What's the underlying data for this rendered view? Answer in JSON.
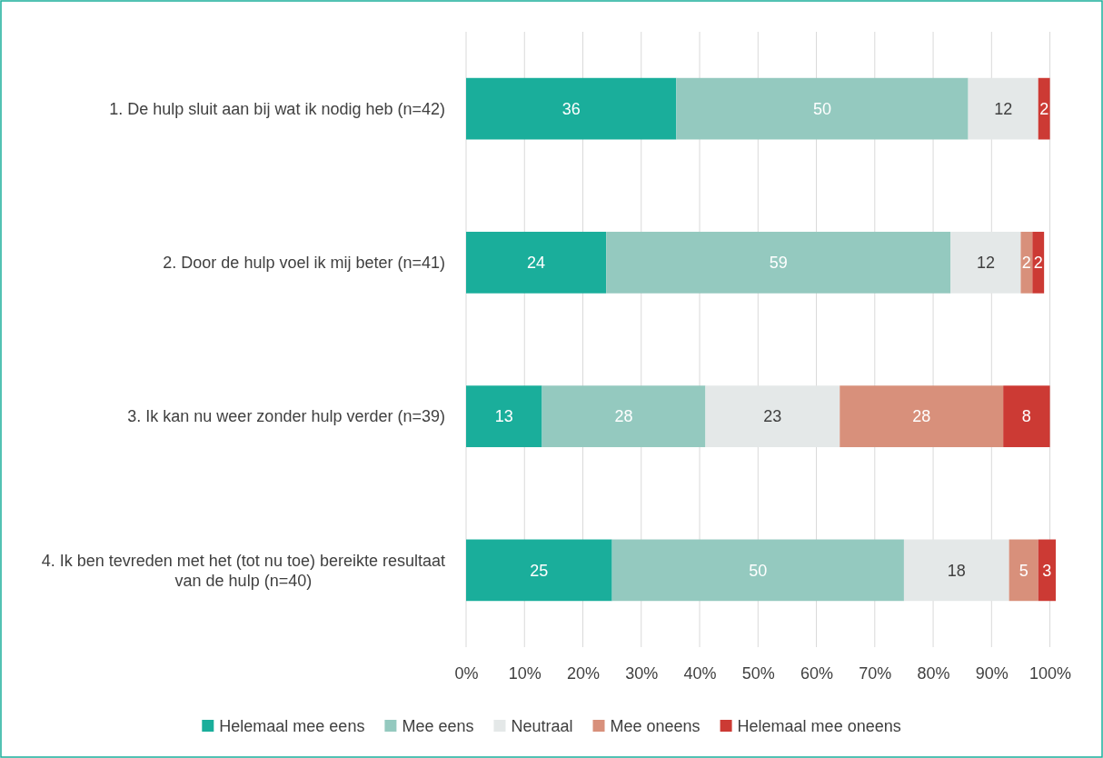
{
  "chart_data": {
    "type": "bar",
    "orientation": "horizontal",
    "stacked": true,
    "data_labels": true,
    "grid": "x",
    "legend": "bottom",
    "categories": [
      "1. De hulp sluit aan bij wat ik nodig heb (n=42)",
      "2. Door de hulp voel ik mij beter (n=41)",
      "3. Ik kan nu weer zonder hulp verder (n=39)",
      "4. Ik ben tevreden met het (tot nu toe) bereikte resultaat van de hulp (n=40)"
    ],
    "xlim": [
      0,
      101
    ],
    "xticks": [
      {
        "value": 0,
        "label": "0%"
      },
      {
        "value": 10,
        "label": "10%"
      },
      {
        "value": 20,
        "label": "20%"
      },
      {
        "value": 30,
        "label": "30%"
      },
      {
        "value": 40,
        "label": "40%"
      },
      {
        "value": 50,
        "label": "50%"
      },
      {
        "value": 60,
        "label": "60%"
      },
      {
        "value": 70,
        "label": "70%"
      },
      {
        "value": 80,
        "label": "80%"
      },
      {
        "value": 90,
        "label": "90%"
      },
      {
        "value": 100,
        "label": "100%"
      }
    ],
    "series": [
      {
        "name": "Helemaal mee eens",
        "color": "#1aae9b",
        "values": [
          36,
          24,
          13,
          25
        ]
      },
      {
        "name": "Mee eens",
        "color": "#94c9bf",
        "values": [
          50,
          59,
          28,
          50
        ]
      },
      {
        "name": "Neutraal",
        "color": "#e4e8e8",
        "values": [
          12,
          12,
          23,
          18
        ]
      },
      {
        "name": "Mee oneens",
        "color": "#d8907b",
        "values": [
          null,
          2,
          28,
          5
        ]
      },
      {
        "name": "Helemaal mee oneens",
        "color": "#cc3a34",
        "values": [
          2,
          2,
          8,
          3
        ]
      }
    ]
  }
}
